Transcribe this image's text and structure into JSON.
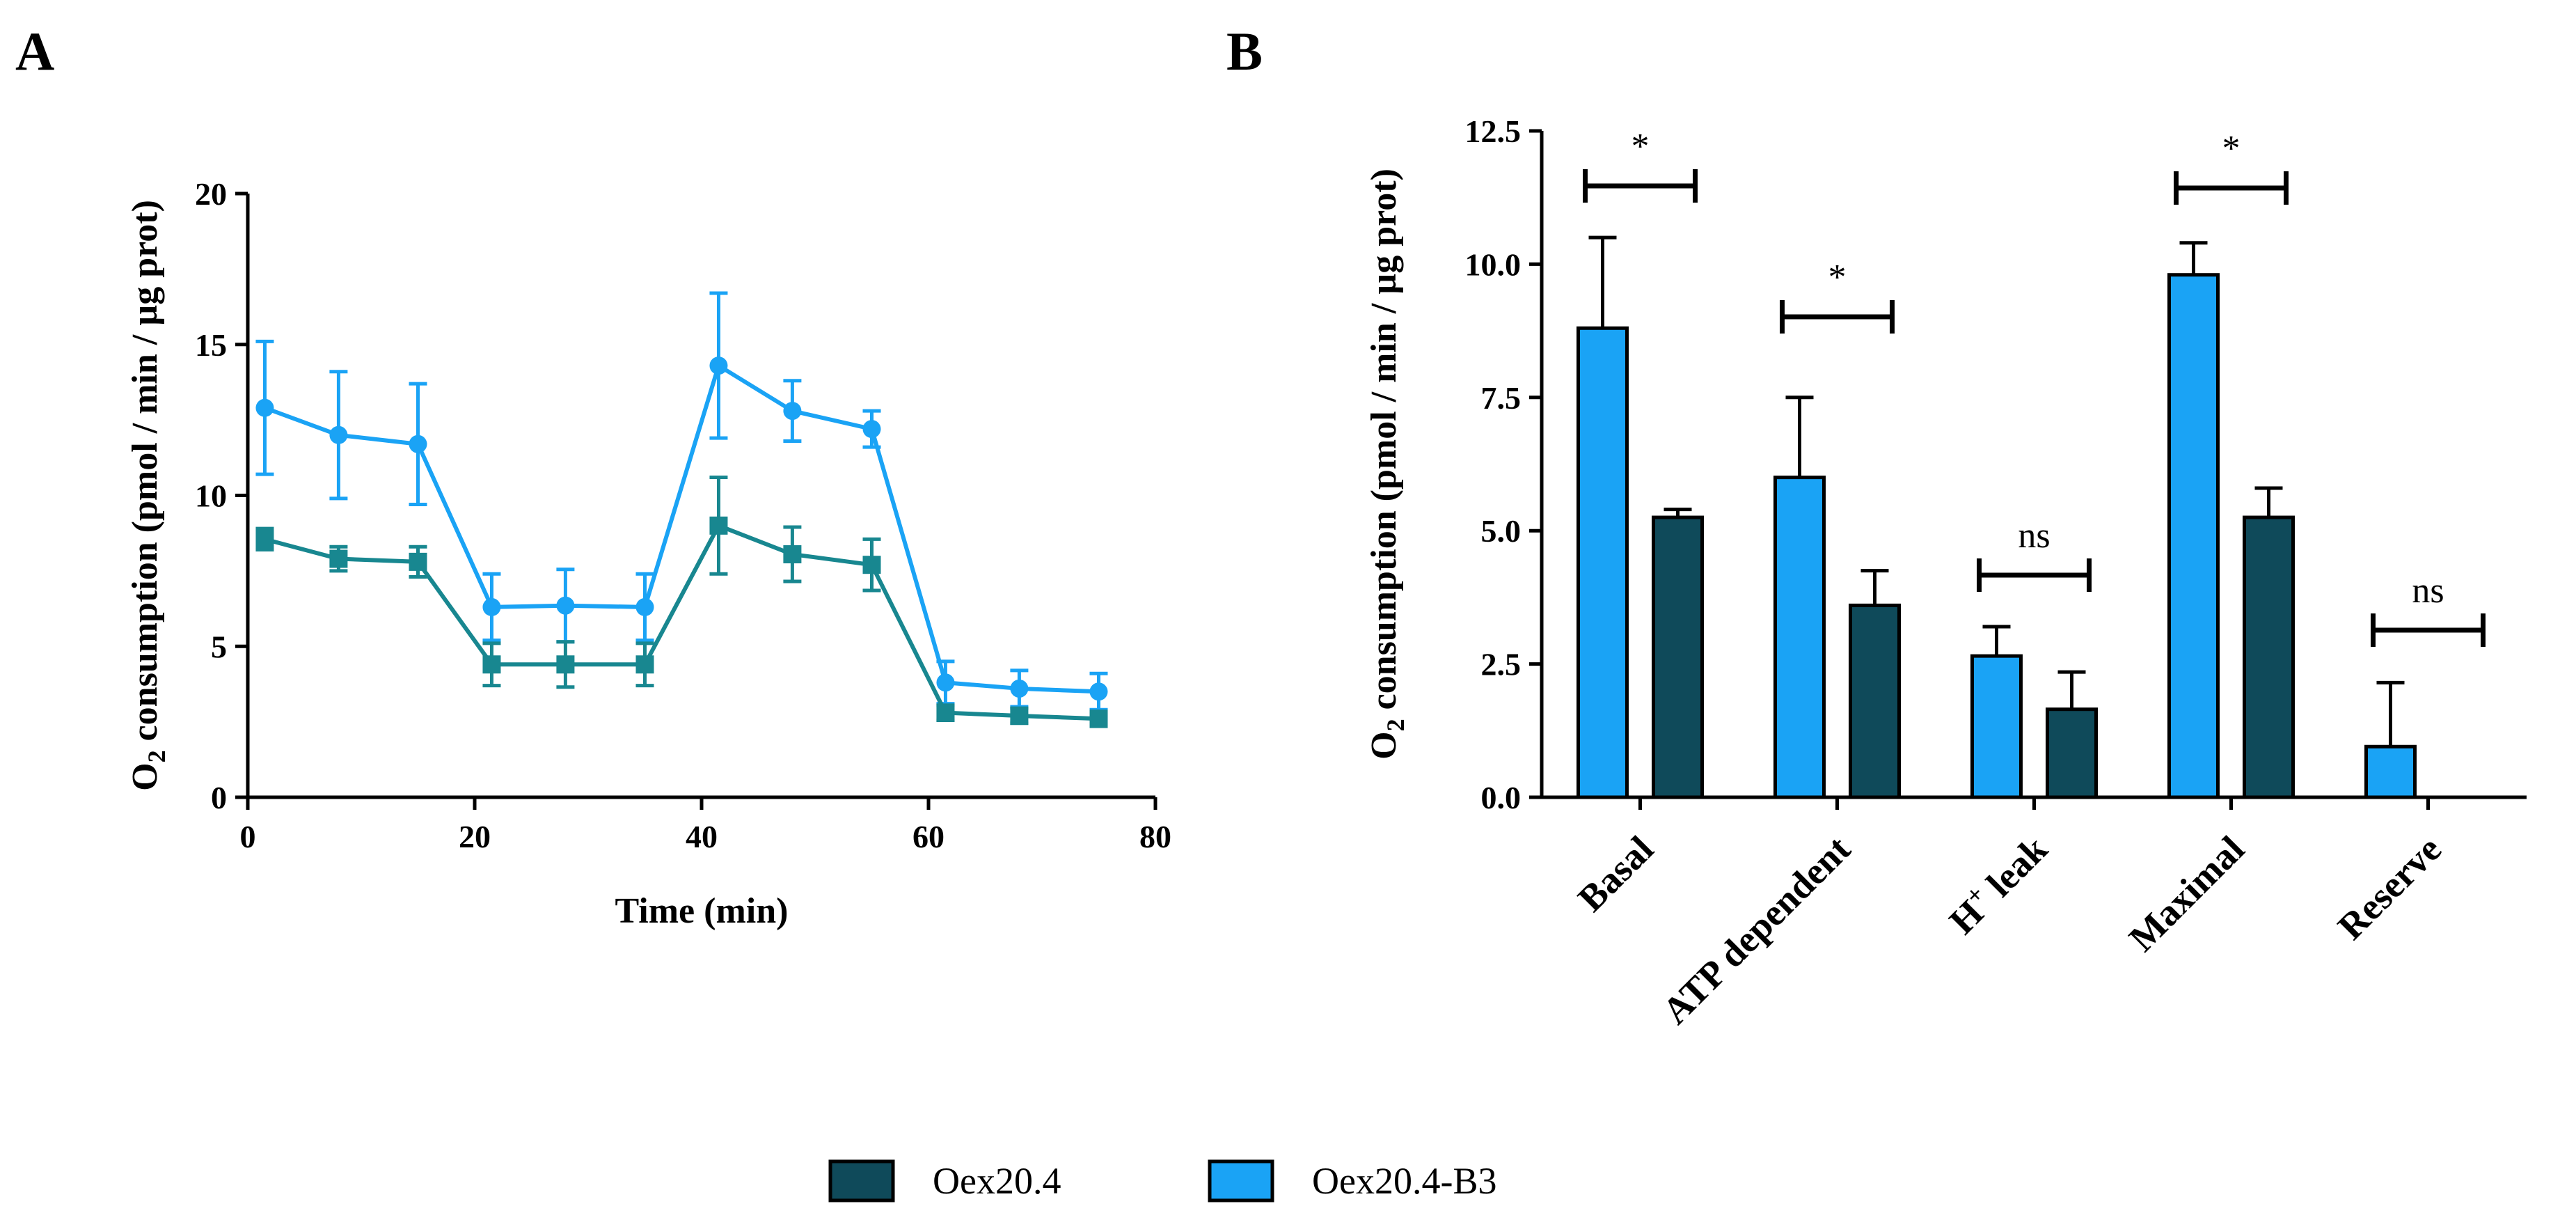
{
  "panels": {
    "a": "A",
    "b": "B"
  },
  "colors": {
    "light": "#1aa3f5",
    "dark": "#0f4a5a",
    "teal": "#188790",
    "axis": "#000000"
  },
  "legend": {
    "items": [
      {
        "label": "Oex20.4",
        "color": "#0f4a5a"
      },
      {
        "label": "Oex20.4-B3",
        "color": "#1aa3f5"
      }
    ]
  },
  "chart_data": [
    {
      "id": "A",
      "type": "line",
      "xlabel": "Time (min)",
      "ylabel": {
        "main": "O",
        "sub": "2",
        "rest": " consumption (pmol / min / µg prot)"
      },
      "xlim": [
        0,
        80
      ],
      "ylim": [
        0,
        20
      ],
      "xticks": [
        0,
        20,
        40,
        60,
        80
      ],
      "yticks": [
        0,
        5,
        10,
        15,
        20
      ],
      "x": [
        1.5,
        8,
        15,
        21.5,
        28,
        35,
        41.5,
        48,
        55,
        61.5,
        68,
        75
      ],
      "series": [
        {
          "name": "Oex20.4-B3",
          "color": "#1aa3f5",
          "marker": "circle",
          "values": [
            12.9,
            12.0,
            11.7,
            6.3,
            6.35,
            6.3,
            14.3,
            12.8,
            12.2,
            3.8,
            3.6,
            3.5
          ],
          "errors": [
            2.2,
            2.1,
            2.0,
            1.1,
            1.2,
            1.1,
            2.4,
            1.0,
            0.6,
            0.7,
            0.6,
            0.6
          ]
        },
        {
          "name": "Oex20.4",
          "color": "#188790",
          "marker": "square",
          "values": [
            8.55,
            7.9,
            7.8,
            4.4,
            4.4,
            4.4,
            9.0,
            8.05,
            7.7,
            2.8,
            2.7,
            2.6
          ],
          "errors": [
            0.35,
            0.4,
            0.5,
            0.7,
            0.75,
            0.7,
            1.6,
            0.9,
            0.85,
            0.25,
            0.25,
            0.25
          ]
        }
      ]
    },
    {
      "id": "B",
      "type": "bar",
      "ylabel": {
        "main": "O",
        "sub": "2",
        "rest": " consumption (pmol / min / µg prot)"
      },
      "ylim": [
        0,
        12.5
      ],
      "yticks": [
        "0.0",
        "2.5",
        "5.0",
        "7.5",
        "10.0",
        "12.5"
      ],
      "categories": [
        {
          "text": "Basal"
        },
        {
          "text": "ATP dependent"
        },
        {
          "text": "H",
          "sup": "+",
          "rest": " leak"
        },
        {
          "text": "Maximal"
        },
        {
          "text": "Reserve"
        }
      ],
      "series": [
        {
          "name": "Oex20.4-B3",
          "color": "#1aa3f5",
          "values": [
            8.8,
            6.0,
            2.65,
            9.8,
            0.95
          ],
          "errors": [
            1.7,
            1.5,
            0.55,
            0.6,
            1.2
          ]
        },
        {
          "name": "Oex20.4",
          "color": "#0f4a5a",
          "values": [
            5.25,
            3.6,
            1.65,
            5.25,
            0
          ],
          "errors": [
            0.15,
            0.65,
            0.7,
            0.55,
            0
          ]
        }
      ],
      "significance": [
        "*",
        "*",
        "ns",
        "*",
        "ns"
      ]
    }
  ]
}
